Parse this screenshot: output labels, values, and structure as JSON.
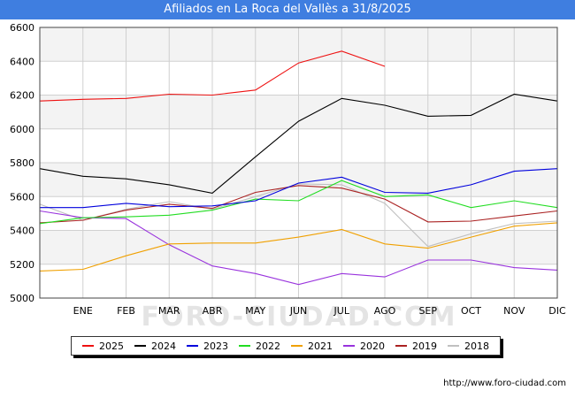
{
  "header": {
    "title": "Afiliados en La Roca del Vallès a 31/8/2025"
  },
  "footer": {
    "url": "http://www.foro-ciudad.com"
  },
  "watermark": "FORO-CIUDAD.COM",
  "chart_data": {
    "type": "line",
    "title": "Afiliados en La Roca del Vallès a 31/8/2025",
    "xlabel": "",
    "ylabel": "",
    "categories": [
      "",
      "ENE",
      "FEB",
      "MAR",
      "ABR",
      "MAY",
      "JUN",
      "JUL",
      "AGO",
      "SEP",
      "OCT",
      "NOV",
      "DIC"
    ],
    "ylim": [
      5000,
      6600
    ],
    "yticks": [
      5000,
      5200,
      5400,
      5600,
      5800,
      6000,
      6200,
      6400,
      6600
    ],
    "grid": true,
    "legend_position": "bottom",
    "series": [
      {
        "name": "2025",
        "color": "#ee1111",
        "values": [
          6165,
          6175,
          6180,
          6205,
          6200,
          6230,
          6390,
          6460,
          6370,
          null,
          null,
          null,
          null
        ]
      },
      {
        "name": "2024",
        "color": "#000000",
        "values": [
          5765,
          5720,
          5705,
          5670,
          5620,
          5835,
          6045,
          6180,
          6140,
          6075,
          6080,
          6205,
          6165
        ]
      },
      {
        "name": "2023",
        "color": "#0000dd",
        "values": [
          5535,
          5535,
          5560,
          5540,
          5545,
          5575,
          5680,
          5715,
          5625,
          5620,
          5670,
          5750,
          5765
        ]
      },
      {
        "name": "2022",
        "color": "#22dd22",
        "values": [
          5440,
          5475,
          5480,
          5490,
          5520,
          5585,
          5575,
          5695,
          5600,
          5610,
          5535,
          5575,
          5535
        ]
      },
      {
        "name": "2021",
        "color": "#f0a000",
        "values": [
          5160,
          5170,
          5250,
          5320,
          5325,
          5325,
          5360,
          5405,
          5320,
          5295,
          5360,
          5425,
          5445
        ]
      },
      {
        "name": "2020",
        "color": "#9933dd",
        "values": [
          5515,
          5475,
          5470,
          5315,
          5190,
          5145,
          5080,
          5145,
          5125,
          5225,
          5225,
          5180,
          5165
        ]
      },
      {
        "name": "2019",
        "color": "#aa2222",
        "values": [
          5445,
          5460,
          5520,
          5555,
          5530,
          5625,
          5665,
          5650,
          5585,
          5450,
          5455,
          5485,
          5515
        ]
      },
      {
        "name": "2018",
        "color": "#c0c0c0",
        "values": [
          5555,
          5460,
          5525,
          5570,
          5525,
          5600,
          5675,
          5670,
          5560,
          5305,
          5380,
          5440,
          5455
        ]
      }
    ]
  }
}
